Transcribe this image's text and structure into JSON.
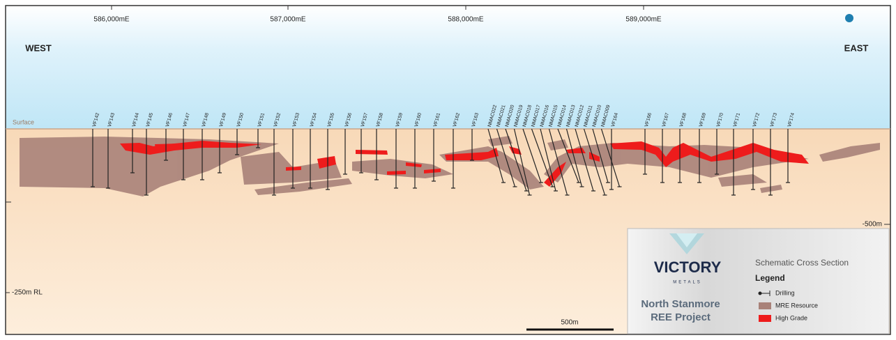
{
  "header": {
    "eastings": [
      "586,000mE",
      "587,000mE",
      "588,000mE",
      "589,000mE"
    ],
    "west": "WEST",
    "east": "EAST"
  },
  "section": {
    "surface": "Surface",
    "rl_500": "-500m",
    "rl_250": "-250m RL",
    "scale_bar": "500m",
    "drill_holes": [
      "VF142",
      "VF143",
      "VF144",
      "VF145",
      "VF146",
      "VF147",
      "VF148",
      "VF149",
      "VF150",
      "VF151",
      "VF152",
      "VF153",
      "VF154",
      "VF155",
      "VF156",
      "VF157",
      "VF158",
      "VF159",
      "VF160",
      "VF161",
      "VF162",
      "VF163",
      "NMAC022",
      "NMAC021",
      "NMAC020",
      "NMAC019",
      "NMAC018",
      "NMAC017",
      "NMAC016",
      "NMAC015",
      "NMAC014",
      "NMAC013",
      "NMAC012",
      "NMAC011",
      "NMAC010",
      "NMAC009",
      "VF164",
      "VF166",
      "VF167",
      "VF168",
      "VF169",
      "VF170",
      "VF171",
      "VF172",
      "VF173",
      "VF174"
    ]
  },
  "legend_box": {
    "company": "VICTORY",
    "company_sub": "METALS",
    "project_line1": "North Stanmore",
    "project_line2": "REE Project",
    "section_title": "Schematic Cross Section",
    "legend_title": "Legend",
    "items": [
      "Drilling",
      "MRE Resource",
      "High Grade"
    ]
  }
}
